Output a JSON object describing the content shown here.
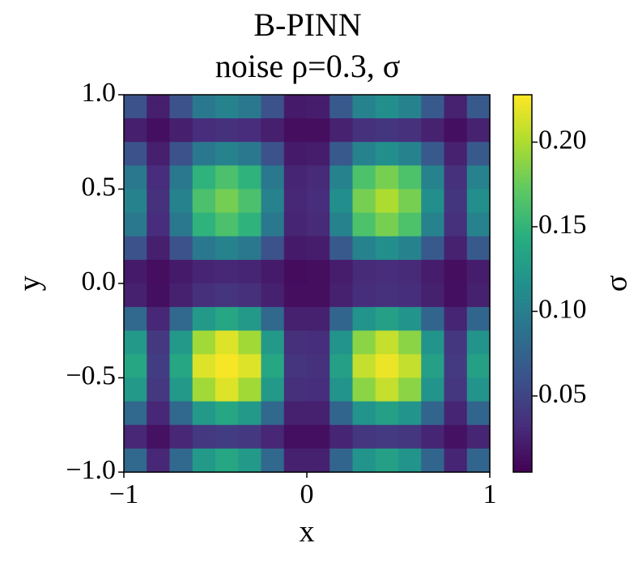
{
  "chart_data": {
    "type": "heatmap",
    "title": "B-PINN",
    "subtitle": "noise ρ=0.3, σ",
    "x_label": "x",
    "y_label": "y",
    "colorbar_label": "σ",
    "colormap": "viridis",
    "xlim": [
      -1,
      1
    ],
    "ylim": [
      -1,
      1
    ],
    "xticks": [
      {
        "value": -1,
        "label": "−1"
      },
      0,
      1
    ],
    "yticks": [
      {
        "value": -1,
        "label": "−1.0"
      },
      {
        "value": -0.5,
        "label": "−0.5"
      },
      {
        "value": 0,
        "label": "0.0"
      },
      {
        "value": 0.5,
        "label": "0.5"
      },
      {
        "value": 1,
        "label": "1.0"
      }
    ],
    "zlim": [
      0.005,
      0.228
    ],
    "zticks": [
      {
        "value": 0.05,
        "label": "0.05"
      },
      {
        "value": 0.1,
        "label": "0.10"
      },
      {
        "value": 0.15,
        "label": "0.15"
      },
      {
        "value": 0.2,
        "label": "0.20"
      }
    ],
    "z": [
      [
        0.061,
        0.024,
        0.061,
        0.094,
        0.104,
        0.094,
        0.061,
        0.021,
        0.023,
        0.067,
        0.104,
        0.115,
        0.104,
        0.067,
        0.026,
        0.067
      ],
      [
        0.024,
        0.014,
        0.024,
        0.033,
        0.036,
        0.033,
        0.024,
        0.013,
        0.013,
        0.026,
        0.036,
        0.039,
        0.036,
        0.026,
        0.014,
        0.026
      ],
      [
        0.061,
        0.024,
        0.061,
        0.094,
        0.104,
        0.094,
        0.061,
        0.021,
        0.023,
        0.067,
        0.104,
        0.115,
        0.104,
        0.067,
        0.026,
        0.067
      ],
      [
        0.094,
        0.033,
        0.094,
        0.148,
        0.163,
        0.148,
        0.094,
        0.028,
        0.031,
        0.104,
        0.164,
        0.181,
        0.164,
        0.104,
        0.036,
        0.104
      ],
      [
        0.104,
        0.036,
        0.104,
        0.163,
        0.18,
        0.163,
        0.104,
        0.03,
        0.033,
        0.115,
        0.181,
        0.2,
        0.181,
        0.115,
        0.039,
        0.115
      ],
      [
        0.094,
        0.033,
        0.094,
        0.148,
        0.163,
        0.148,
        0.094,
        0.028,
        0.031,
        0.104,
        0.164,
        0.181,
        0.164,
        0.104,
        0.036,
        0.104
      ],
      [
        0.061,
        0.024,
        0.061,
        0.094,
        0.104,
        0.094,
        0.061,
        0.021,
        0.023,
        0.067,
        0.104,
        0.115,
        0.104,
        0.067,
        0.026,
        0.067
      ],
      [
        0.021,
        0.013,
        0.021,
        0.028,
        0.03,
        0.028,
        0.021,
        0.012,
        0.013,
        0.023,
        0.031,
        0.033,
        0.031,
        0.023,
        0.013,
        0.023
      ],
      [
        0.025,
        0.014,
        0.025,
        0.035,
        0.038,
        0.035,
        0.025,
        0.013,
        0.013,
        0.025,
        0.034,
        0.036,
        0.034,
        0.025,
        0.014,
        0.025
      ],
      [
        0.08,
        0.029,
        0.08,
        0.124,
        0.137,
        0.124,
        0.08,
        0.025,
        0.025,
        0.077,
        0.119,
        0.131,
        0.119,
        0.077,
        0.028,
        0.077
      ],
      [
        0.124,
        0.041,
        0.124,
        0.196,
        0.217,
        0.196,
        0.124,
        0.035,
        0.034,
        0.119,
        0.188,
        0.208,
        0.188,
        0.119,
        0.04,
        0.119
      ],
      [
        0.137,
        0.045,
        0.137,
        0.217,
        0.226,
        0.217,
        0.137,
        0.038,
        0.036,
        0.131,
        0.208,
        0.222,
        0.208,
        0.131,
        0.043,
        0.131
      ],
      [
        0.124,
        0.041,
        0.124,
        0.196,
        0.217,
        0.196,
        0.124,
        0.035,
        0.034,
        0.119,
        0.188,
        0.208,
        0.188,
        0.119,
        0.04,
        0.119
      ],
      [
        0.08,
        0.029,
        0.08,
        0.124,
        0.137,
        0.124,
        0.08,
        0.025,
        0.025,
        0.077,
        0.119,
        0.131,
        0.119,
        0.077,
        0.028,
        0.077
      ],
      [
        0.029,
        0.015,
        0.029,
        0.041,
        0.045,
        0.041,
        0.029,
        0.014,
        0.014,
        0.028,
        0.04,
        0.043,
        0.04,
        0.028,
        0.015,
        0.028
      ],
      [
        0.08,
        0.029,
        0.08,
        0.124,
        0.137,
        0.124,
        0.08,
        0.025,
        0.025,
        0.077,
        0.119,
        0.131,
        0.119,
        0.077,
        0.028,
        0.077
      ]
    ]
  }
}
